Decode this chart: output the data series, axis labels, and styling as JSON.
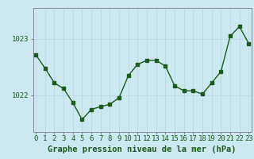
{
  "x": [
    0,
    1,
    2,
    3,
    4,
    5,
    6,
    7,
    8,
    9,
    10,
    11,
    12,
    13,
    14,
    15,
    16,
    17,
    18,
    19,
    20,
    21,
    22,
    23
  ],
  "y": [
    1022.72,
    1022.48,
    1022.22,
    1022.12,
    1021.87,
    1021.57,
    1021.75,
    1021.8,
    1021.84,
    1021.96,
    1022.35,
    1022.55,
    1022.62,
    1022.62,
    1022.52,
    1022.17,
    1022.08,
    1022.08,
    1022.02,
    1022.22,
    1022.42,
    1023.05,
    1023.22,
    1022.92
  ],
  "line_color": "#1a5c1a",
  "marker_color": "#1a5c1a",
  "bg_color": "#cce8f0",
  "grid_color_v": "#b8d4dc",
  "grid_color_h": "#b8d4dc",
  "xlabel": "Graphe pression niveau de la mer (hPa)",
  "yticks": [
    1022,
    1023
  ],
  "ylim": [
    1021.35,
    1023.55
  ],
  "xlim": [
    -0.3,
    23.3
  ],
  "font_color": "#1a5c1a",
  "tick_fontsize": 6.5,
  "xlabel_fontsize": 7.5
}
